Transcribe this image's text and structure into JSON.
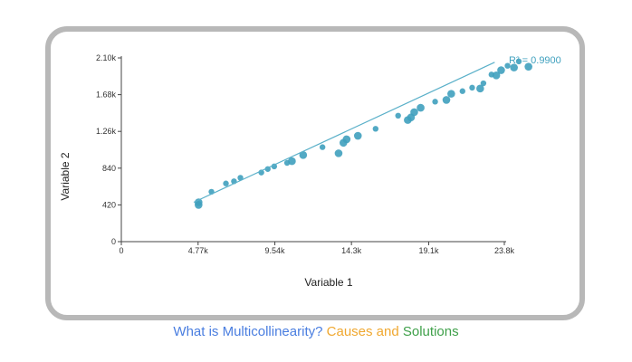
{
  "chart_data": {
    "type": "scatter",
    "xlabel": "Variable 1",
    "ylabel": "Variable 2",
    "xlim": [
      0,
      23800
    ],
    "ylim": [
      0,
      2100
    ],
    "x_ticks": [
      0,
      4770,
      9540,
      14300,
      19100,
      23800
    ],
    "x_tick_labels": [
      "0",
      "4.77k",
      "9.54k",
      "14.3k",
      "19.1k",
      "23.8k"
    ],
    "y_ticks": [
      0,
      420,
      840,
      1260,
      1680,
      2100
    ],
    "y_tick_labels": [
      "0",
      "420",
      "840",
      "1.26k",
      "1.68k",
      "2.10k"
    ],
    "annotation": "R² = 0.9900",
    "trendline": {
      "x": [
        4500,
        23200
      ],
      "y": [
        450,
        2050
      ]
    },
    "point_color": "#3fa0be",
    "line_color": "#5ab0c9",
    "points": [
      {
        "x": 4800,
        "y": 420,
        "size": 2
      },
      {
        "x": 4800,
        "y": 450,
        "size": 2
      },
      {
        "x": 5600,
        "y": 570,
        "size": 1
      },
      {
        "x": 6500,
        "y": 665,
        "size": 1
      },
      {
        "x": 7000,
        "y": 690,
        "size": 1
      },
      {
        "x": 7400,
        "y": 730,
        "size": 1
      },
      {
        "x": 8700,
        "y": 790,
        "size": 1
      },
      {
        "x": 9100,
        "y": 830,
        "size": 1
      },
      {
        "x": 9500,
        "y": 860,
        "size": 1
      },
      {
        "x": 10300,
        "y": 900,
        "size": 1
      },
      {
        "x": 10600,
        "y": 920,
        "size": 2
      },
      {
        "x": 11300,
        "y": 990,
        "size": 2
      },
      {
        "x": 12500,
        "y": 1080,
        "size": 1
      },
      {
        "x": 13500,
        "y": 1010,
        "size": 2
      },
      {
        "x": 13800,
        "y": 1130,
        "size": 2
      },
      {
        "x": 14000,
        "y": 1170,
        "size": 2
      },
      {
        "x": 14700,
        "y": 1210,
        "size": 2
      },
      {
        "x": 15800,
        "y": 1290,
        "size": 1
      },
      {
        "x": 17200,
        "y": 1440,
        "size": 1
      },
      {
        "x": 17800,
        "y": 1390,
        "size": 2
      },
      {
        "x": 18000,
        "y": 1420,
        "size": 2
      },
      {
        "x": 18200,
        "y": 1480,
        "size": 2
      },
      {
        "x": 18600,
        "y": 1530,
        "size": 2
      },
      {
        "x": 19500,
        "y": 1600,
        "size": 1
      },
      {
        "x": 20200,
        "y": 1620,
        "size": 2
      },
      {
        "x": 20500,
        "y": 1690,
        "size": 2
      },
      {
        "x": 21200,
        "y": 1720,
        "size": 1
      },
      {
        "x": 21800,
        "y": 1760,
        "size": 1
      },
      {
        "x": 22300,
        "y": 1750,
        "size": 2
      },
      {
        "x": 22500,
        "y": 1810,
        "size": 1
      },
      {
        "x": 23000,
        "y": 1910,
        "size": 1
      },
      {
        "x": 23300,
        "y": 1900,
        "size": 2
      },
      {
        "x": 23600,
        "y": 1960,
        "size": 2
      },
      {
        "x": 24000,
        "y": 2010,
        "size": 1
      },
      {
        "x": 24400,
        "y": 1990,
        "size": 2
      },
      {
        "x": 24700,
        "y": 2060,
        "size": 1
      },
      {
        "x": 25300,
        "y": 2000,
        "size": 2
      }
    ]
  },
  "caption": {
    "part1": "What is Multicollinearity?",
    "part2": "Causes",
    "part3": "and",
    "part4": "Solutions",
    "colors": {
      "part1": "#4a7ee0",
      "part2": "#f0a830",
      "part3": "#f0a830",
      "part4": "#3fa04a"
    }
  }
}
